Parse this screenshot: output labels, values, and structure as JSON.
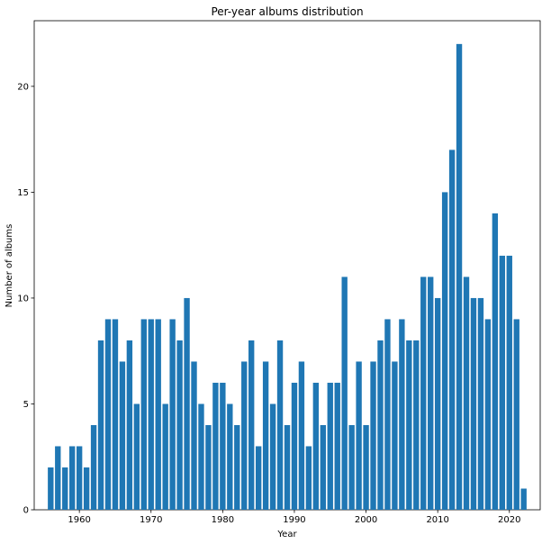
{
  "chart_data": {
    "type": "bar",
    "title": "Per-year albums distribution",
    "xlabel": "Year",
    "ylabel": "Number of albums",
    "x": [
      1956,
      1957,
      1958,
      1959,
      1960,
      1961,
      1962,
      1963,
      1964,
      1965,
      1966,
      1967,
      1968,
      1969,
      1970,
      1971,
      1972,
      1973,
      1974,
      1975,
      1976,
      1977,
      1978,
      1979,
      1980,
      1981,
      1982,
      1983,
      1984,
      1985,
      1986,
      1987,
      1988,
      1989,
      1990,
      1991,
      1992,
      1993,
      1994,
      1995,
      1996,
      1997,
      1998,
      1999,
      2000,
      2001,
      2002,
      2003,
      2004,
      2005,
      2006,
      2007,
      2008,
      2009,
      2010,
      2011,
      2012,
      2013,
      2014,
      2015,
      2016,
      2017,
      2018,
      2019,
      2020,
      2021,
      2022
    ],
    "values": [
      2,
      3,
      2,
      3,
      3,
      2,
      4,
      8,
      9,
      9,
      7,
      8,
      5,
      9,
      9,
      9,
      5,
      9,
      8,
      10,
      7,
      5,
      4,
      6,
      6,
      5,
      4,
      7,
      8,
      3,
      7,
      5,
      8,
      4,
      6,
      7,
      3,
      6,
      4,
      6,
      6,
      11,
      4,
      7,
      4,
      7,
      8,
      9,
      7,
      9,
      8,
      8,
      11,
      11,
      10,
      15,
      17,
      22,
      11,
      10,
      10,
      9,
      14,
      12,
      12,
      9,
      1
    ],
    "xlim": [
      1953.7,
      2024.3
    ],
    "ylim": [
      0,
      23.1
    ],
    "xticks": [
      1960,
      1970,
      1980,
      1990,
      2000,
      2010,
      2020
    ],
    "xtick_labels": [
      "1960",
      "1970",
      "1980",
      "1990",
      "2000",
      "2010",
      "2020"
    ],
    "yticks": [
      0,
      5,
      10,
      15,
      20
    ],
    "ytick_labels": [
      "0",
      "5",
      "10",
      "15",
      "20"
    ],
    "bar_width": 0.8,
    "grid": false,
    "bar_color": "#1f77b4",
    "axis_color": "#000000"
  }
}
